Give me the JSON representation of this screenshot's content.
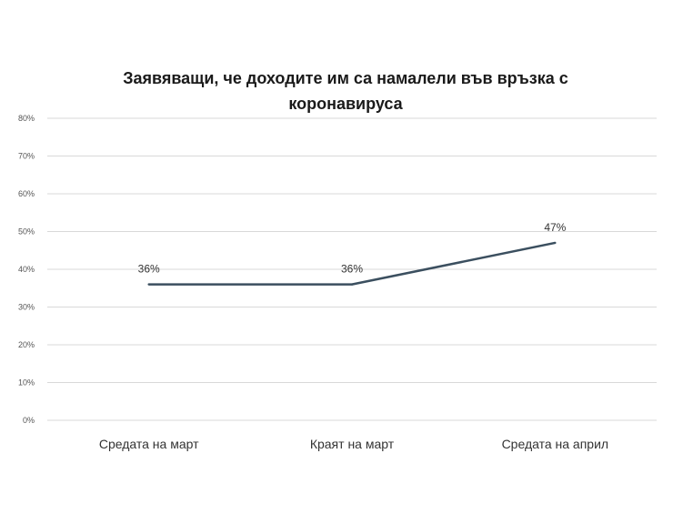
{
  "chart_data": {
    "type": "line",
    "title": "Заявяващи,  че доходите им са намалели във връзка с коронавируса",
    "title_lines": [
      "Заявяващи,  че доходите им са намалели във връзка с",
      "коронавируса"
    ],
    "categories": [
      "Средата на март",
      "Краят на март",
      "Средата на април"
    ],
    "series": [
      {
        "values": [
          36,
          36,
          47
        ],
        "data_labels": [
          "36%",
          "36%",
          "47%"
        ]
      }
    ],
    "y_ticks": [
      0,
      10,
      20,
      30,
      40,
      50,
      60,
      70,
      80
    ],
    "y_tick_labels": [
      "0%",
      "10%",
      "20%",
      "30%",
      "40%",
      "50%",
      "60%",
      "70%",
      "80%"
    ],
    "ylim": [
      0,
      80
    ],
    "grid": true,
    "legend": "none",
    "colors": {
      "line": "#3b4f5f",
      "grid": "#d9d9d9"
    }
  }
}
